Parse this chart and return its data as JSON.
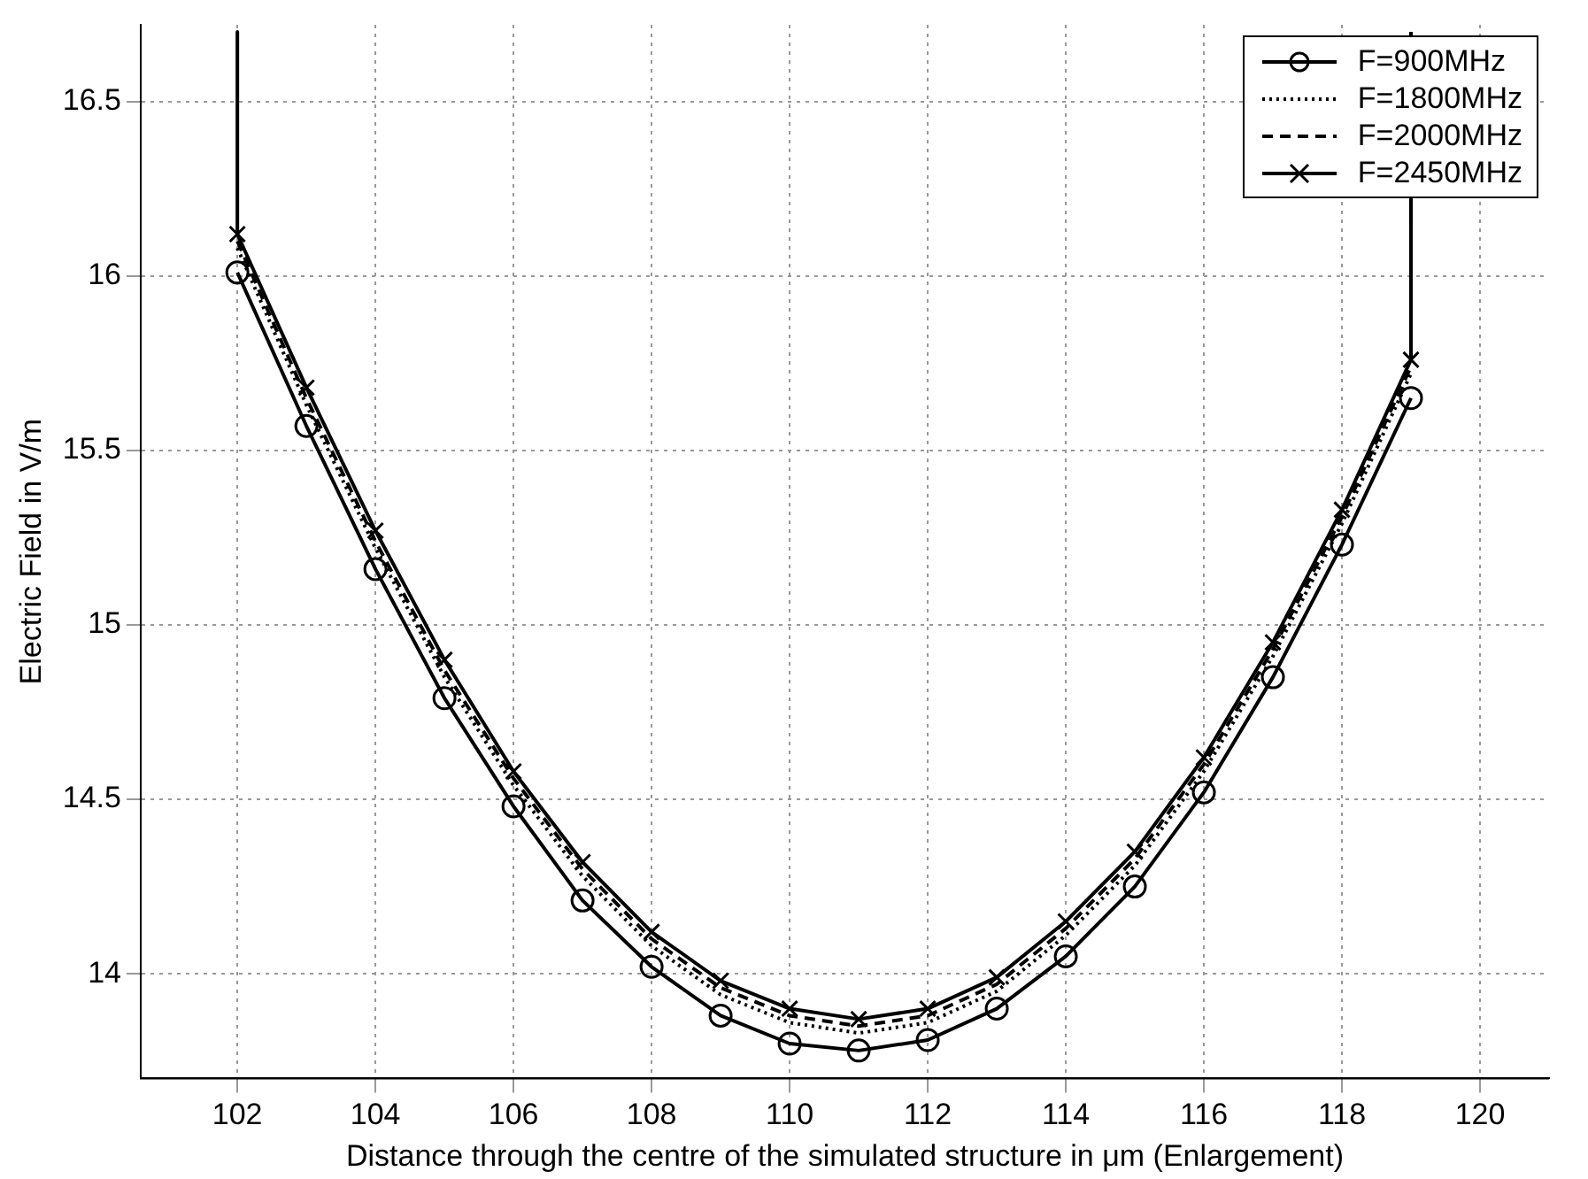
{
  "chart_data": {
    "type": "line",
    "xlabel": "Distance through the centre of the simulated structure in μm (Enlargement)",
    "ylabel": "Electric Field in V/m",
    "x": [
      102,
      102,
      103,
      104,
      105,
      106,
      107,
      108,
      109,
      110,
      111,
      112,
      113,
      114,
      115,
      116,
      117,
      118,
      119,
      119
    ],
    "xlim": [
      100.6,
      121
    ],
    "xticks": [
      102,
      104,
      106,
      108,
      110,
      112,
      114,
      116,
      118,
      120
    ],
    "ylim": [
      13.7,
      16.72
    ],
    "yticks": [
      14,
      14.5,
      15,
      15.5,
      16,
      16.5
    ],
    "grid": true,
    "legend": "top right",
    "series": [
      {
        "name": "F=900MHz",
        "color": "#000000",
        "marker": "circle",
        "line_style": "solid",
        "values": [
          null,
          16.01,
          15.57,
          15.16,
          14.79,
          14.48,
          14.21,
          14.02,
          13.88,
          13.8,
          13.78,
          13.81,
          13.9,
          14.05,
          14.25,
          14.52,
          14.85,
          15.23,
          15.65,
          null
        ]
      },
      {
        "name": "F=1800MHz",
        "color": "#000000",
        "marker": "none",
        "line_style": "dotted",
        "values": [
          null,
          16.08,
          15.63,
          15.22,
          14.85,
          14.54,
          14.28,
          14.08,
          13.94,
          13.86,
          13.83,
          13.86,
          13.95,
          14.11,
          14.31,
          14.58,
          14.91,
          15.29,
          15.72,
          null
        ]
      },
      {
        "name": "F=2000MHz",
        "color": "#000000",
        "marker": "none",
        "line_style": "dashed",
        "values": [
          null,
          16.1,
          15.65,
          15.24,
          14.87,
          14.56,
          14.3,
          14.1,
          13.96,
          13.88,
          13.85,
          13.88,
          13.97,
          14.13,
          14.33,
          14.6,
          14.93,
          15.31,
          15.74,
          null
        ]
      },
      {
        "name": "F=2450MHz",
        "color": "#000000",
        "marker": "cross",
        "line_style": "solid",
        "values": [
          16.7,
          16.12,
          15.68,
          15.27,
          14.9,
          14.58,
          14.32,
          14.12,
          13.98,
          13.9,
          13.87,
          13.9,
          13.99,
          14.15,
          14.35,
          14.62,
          14.95,
          15.33,
          15.76,
          16.7
        ]
      }
    ]
  }
}
